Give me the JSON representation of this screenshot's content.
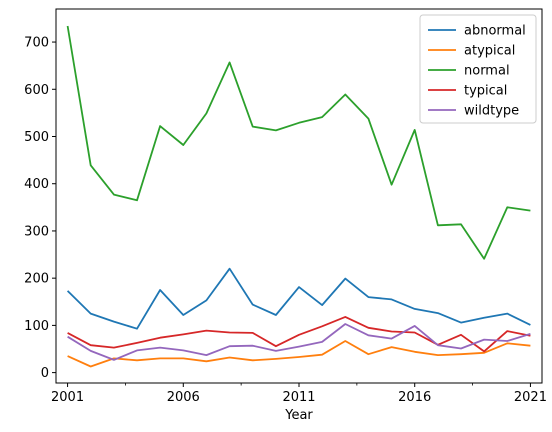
{
  "chart_data": {
    "type": "line",
    "title": "",
    "xlabel": "Year",
    "ylabel": "",
    "x": [
      2001,
      2002,
      2003,
      2004,
      2005,
      2006,
      2007,
      2008,
      2009,
      2010,
      2011,
      2012,
      2013,
      2014,
      2015,
      2016,
      2017,
      2018,
      2019,
      2020,
      2021
    ],
    "xlim": [
      2000.5,
      2021.5
    ],
    "ylim": [
      -22,
      770
    ],
    "x_major_ticks": [
      2001,
      2006,
      2011,
      2016,
      2021
    ],
    "x_tick_labels": [
      "2001",
      "2006",
      "2011",
      "2016",
      "2021"
    ],
    "x_minor_ticks": [
      2003.5,
      2008.5,
      2013.5,
      2018.5
    ],
    "y_ticks": [
      0,
      100,
      200,
      300,
      400,
      500,
      600,
      700
    ],
    "y_tick_labels": [
      "0",
      "100",
      "200",
      "300",
      "400",
      "500",
      "600",
      "700"
    ],
    "grid": false,
    "legend_position": "top-right",
    "series": [
      {
        "name": "abnormal",
        "color": "#1f77b4",
        "values": [
          173,
          125,
          108,
          93,
          175,
          122,
          153,
          220,
          144,
          122,
          181,
          143,
          199,
          160,
          155,
          135,
          126,
          106,
          116,
          125,
          101
        ]
      },
      {
        "name": "atypical",
        "color": "#ff7f0e",
        "values": [
          35,
          13,
          30,
          26,
          30,
          30,
          24,
          32,
          26,
          29,
          33,
          38,
          67,
          39,
          54,
          44,
          37,
          39,
          42,
          62,
          57
        ]
      },
      {
        "name": "normal",
        "color": "#2ca02c",
        "values": [
          734,
          439,
          377,
          365,
          522,
          482,
          549,
          657,
          521,
          513,
          529,
          541,
          589,
          538,
          398,
          514,
          312,
          314,
          241,
          350,
          343
        ]
      },
      {
        "name": "typical",
        "color": "#d62728",
        "values": [
          84,
          58,
          53,
          63,
          74,
          81,
          89,
          85,
          84,
          56,
          80,
          98,
          118,
          95,
          87,
          85,
          59,
          80,
          45,
          88,
          78
        ]
      },
      {
        "name": "wildtype",
        "color": "#9467bd",
        "values": [
          76,
          46,
          27,
          47,
          53,
          47,
          37,
          56,
          57,
          46,
          55,
          65,
          103,
          79,
          72,
          99,
          58,
          51,
          70,
          67,
          82
        ]
      }
    ]
  }
}
